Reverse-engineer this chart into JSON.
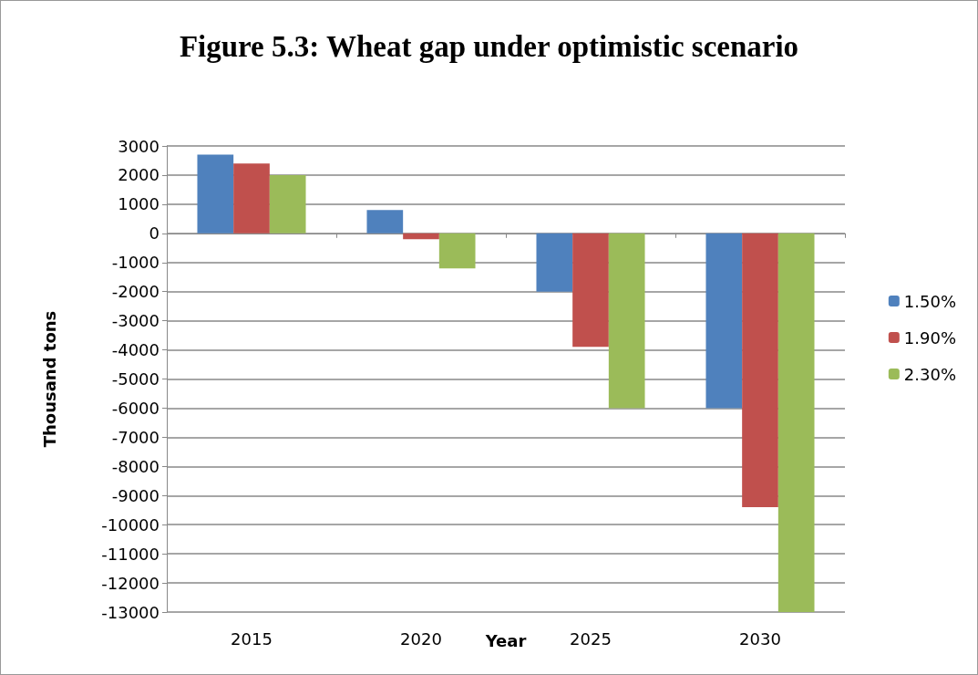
{
  "chart_data": {
    "type": "bar",
    "title": "Figure 5.3: Wheat gap under optimistic scenario",
    "xlabel": "Year",
    "ylabel": "Thousand tons",
    "categories": [
      "2015",
      "2020",
      "2025",
      "2030"
    ],
    "series": [
      {
        "name": "1.50%",
        "color": "#4f81bd",
        "values": [
          2700,
          800,
          -2000,
          -6000
        ]
      },
      {
        "name": "1.90%",
        "color": "#c0504d",
        "values": [
          2400,
          -200,
          -3900,
          -9400
        ]
      },
      {
        "name": "2.30%",
        "color": "#9bbb59",
        "values": [
          2000,
          -1200,
          -6000,
          -13000
        ]
      }
    ],
    "ylim": [
      -13000,
      3000
    ],
    "yticks": [
      -13000,
      -12000,
      -11000,
      -10000,
      -9000,
      -8000,
      -7000,
      -6000,
      -5000,
      -4000,
      -3000,
      -2000,
      -1000,
      0,
      1000,
      2000,
      3000
    ],
    "grid": "y",
    "legend": "right"
  }
}
